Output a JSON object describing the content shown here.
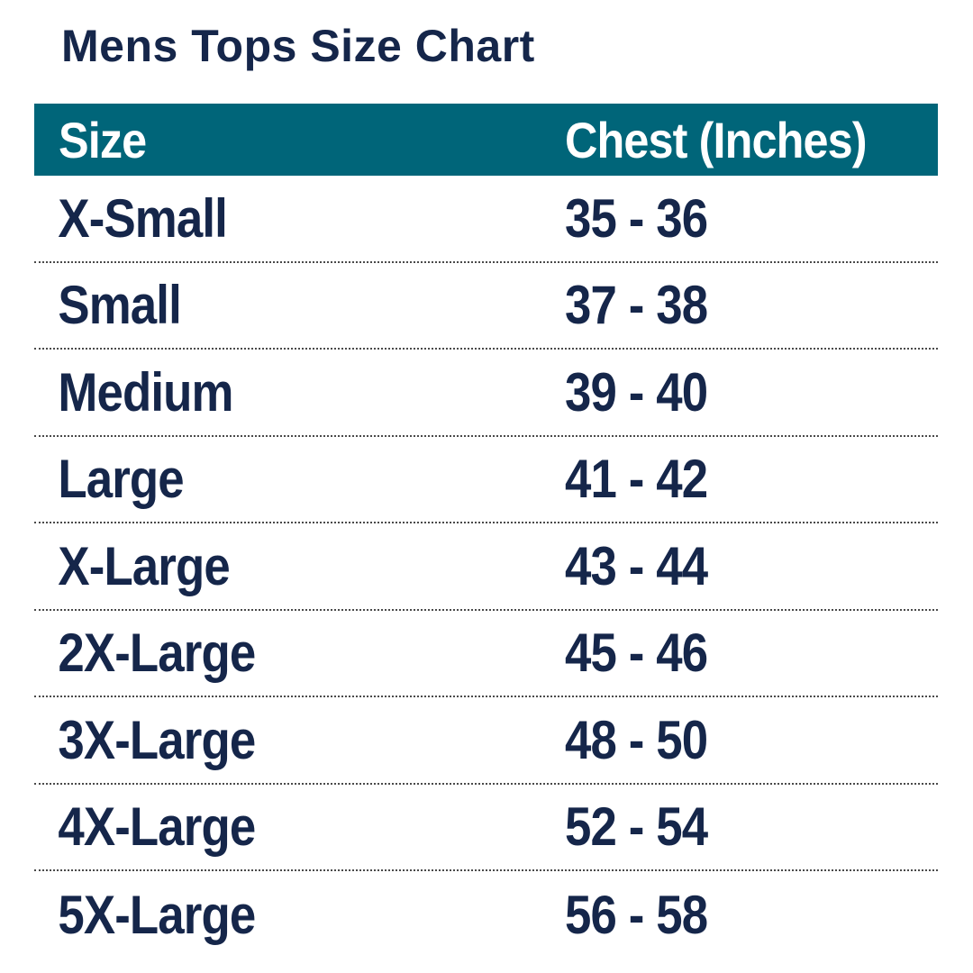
{
  "title": "Mens Tops Size Chart",
  "table": {
    "headers": {
      "size": "Size",
      "chest": "Chest (Inches)"
    },
    "rows": [
      {
        "size": "X-Small",
        "chest": "35 - 36"
      },
      {
        "size": "Small",
        "chest": "37 - 38"
      },
      {
        "size": "Medium",
        "chest": "39 - 40"
      },
      {
        "size": "Large",
        "chest": "41 - 42"
      },
      {
        "size": "X-Large",
        "chest": "43 - 44"
      },
      {
        "size": "2X-Large",
        "chest": "45 - 46"
      },
      {
        "size": "3X-Large",
        "chest": "48 - 50"
      },
      {
        "size": "4X-Large",
        "chest": "52 - 54"
      },
      {
        "size": "5X-Large",
        "chest": "56 - 58"
      }
    ]
  },
  "colors": {
    "header_background": "#006579",
    "text": "#15264a",
    "header_text": "#ffffff"
  }
}
